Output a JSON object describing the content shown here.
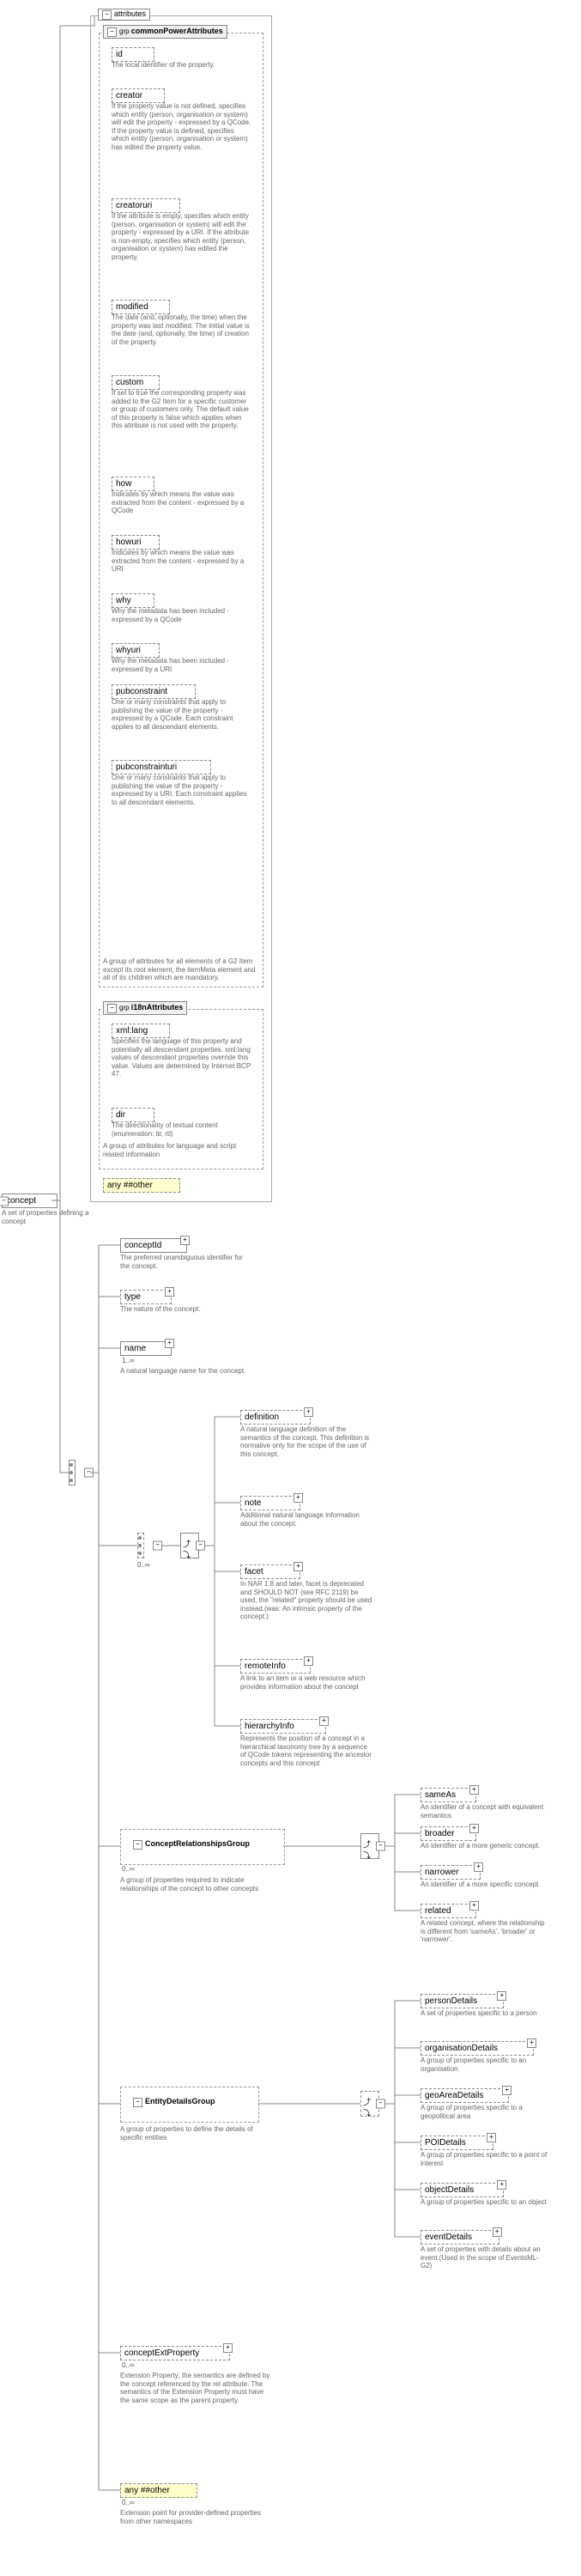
{
  "root": {
    "name": "concept",
    "desc": "A set of properties defining a concept"
  },
  "attr_box_label": "attributes",
  "commonPower": {
    "label": "commonPowerAttributes",
    "group_desc": "A group of attributes for all elements of a G2 Item except its root element, the itemMeta element and all of its children which are mandatory.",
    "items": [
      {
        "name": "id",
        "desc": "The local identifier of the property."
      },
      {
        "name": "creator",
        "desc": "If the property value is not defined, specifies which entity (person, organisation or system) will edit the property - expressed by a QCode. If the property value is defined, specifies which entity (person, organisation or system) has edited the property value."
      },
      {
        "name": "creatoruri",
        "desc": "If the attribute is empty, specifies which entity (person, organisation or system) will edit the property - expressed by a URI. If the attribute is non-empty, specifies which entity (person, organisation or system) has edited the property."
      },
      {
        "name": "modified",
        "desc": "The date (and, optionally, the time) when the property was last modified. The initial value is the date (and, optionally, the time) of creation of the property."
      },
      {
        "name": "custom",
        "desc": "If set to true the corresponding property was added to the G2 Item for a specific customer or group of customers only. The default value of this property is false which applies when this attribute is not used with the property."
      },
      {
        "name": "how",
        "desc": "Indicates by which means the value was extracted from the content - expressed by a QCode"
      },
      {
        "name": "howuri",
        "desc": "Indicates by which means the value was extracted from the content - expressed by a URI"
      },
      {
        "name": "why",
        "desc": "Why the metadata has been included - expressed by a QCode"
      },
      {
        "name": "whyuri",
        "desc": "Why the metadata has been included - expressed by a URI"
      },
      {
        "name": "pubconstraint",
        "desc": "One or many constraints that apply to publishing the value of the property - expressed by a QCode. Each constraint applies to all descendant elements."
      },
      {
        "name": "pubconstrainturi",
        "desc": "One or many constraints that apply to publishing the value of the property - expressed by a URI. Each constraint applies to all descendant elements."
      }
    ]
  },
  "i18n": {
    "label": "i18nAttributes",
    "group_desc": "A group of attributes for language and script related information",
    "items": [
      {
        "name": "xml:lang",
        "desc": "Specifies the language of this property and potentially all descendant properties. xml:lang values of descendant properties override this value. Values are determined by Internet BCP 47."
      },
      {
        "name": "dir",
        "desc": "The directionality of textual content (enumeration: ltr, rtl)"
      }
    ]
  },
  "any_other": "any ##other",
  "children": [
    {
      "name": "conceptId",
      "desc": "The preferred unambiguous identifier for the concept.",
      "req": true,
      "card": ""
    },
    {
      "name": "type",
      "desc": "The nature of the concept.",
      "opt": true
    },
    {
      "name": "name",
      "desc": "A natural language name for the concept.",
      "req": true,
      "card": "1..∞"
    }
  ],
  "info_children": [
    {
      "name": "definition",
      "desc": "A natural language definition of the semantics of the concept. This definition is normative only for the scope of the use of this concept."
    },
    {
      "name": "note",
      "desc": "Additional natural language information about the concept."
    },
    {
      "name": "facet",
      "desc": "In NAR 1.8 and later, facet is deprecated and SHOULD NOT (see RFC 2119) be used, the \"related\" property should be used instead.(was: An intrinsic property of the concept.)"
    },
    {
      "name": "remoteInfo",
      "desc": "A link to an item or a web resource which provides information about the concept"
    },
    {
      "name": "hierarchyInfo",
      "desc": "Represents the position of a concept in a hierarchical taxonomy tree by a sequence of QCode tokens representing the ancestor concepts and this concept"
    }
  ],
  "info_card": "0..∞",
  "crg": {
    "name": "ConceptRelationshipsGroup",
    "desc": "A group of properties required to indicate relationships of the concept to other concepts",
    "card": "0..∞"
  },
  "crg_children": [
    {
      "name": "sameAs",
      "desc": "An identifier of a concept with equivalent semantics"
    },
    {
      "name": "broader",
      "desc": "An identifier of a more generic concept."
    },
    {
      "name": "narrower",
      "desc": "An identifier of a more specific concept."
    },
    {
      "name": "related",
      "desc": "A related concept, where the relationship is different from 'sameAs', 'broader' or 'narrower'."
    }
  ],
  "edg": {
    "name": "EntityDetailsGroup",
    "desc": "A group of properties to define the details of specific entities"
  },
  "edg_children": [
    {
      "name": "personDetails",
      "desc": "A set of properties specific to a person"
    },
    {
      "name": "organisationDetails",
      "desc": "A group of properties specific to an organisation"
    },
    {
      "name": "geoAreaDetails",
      "desc": "A group of properties specific to a geopolitical area"
    },
    {
      "name": "POIDetails",
      "desc": "A group of properties specific to a point of interest"
    },
    {
      "name": "objectDetails",
      "desc": "A group of properties specific to an object"
    },
    {
      "name": "eventDetails",
      "desc": "A set of properties with details about an event.(Used in the scope of EventsML-G2)"
    }
  ],
  "cep": {
    "name": "conceptExtProperty",
    "card": "0..∞",
    "desc": "Extension Property; the semantics are defined by the concept referenced by the rel attribute. The semantics of the Extension Property must have the same scope as the parent property."
  },
  "any_bottom": {
    "name": "any ##other",
    "card": "0..∞",
    "desc": "Extension point for provider-defined properties from other namespaces"
  },
  "colors": {
    "line": "#888888",
    "text": "#666666",
    "bg": "#ffffff"
  }
}
